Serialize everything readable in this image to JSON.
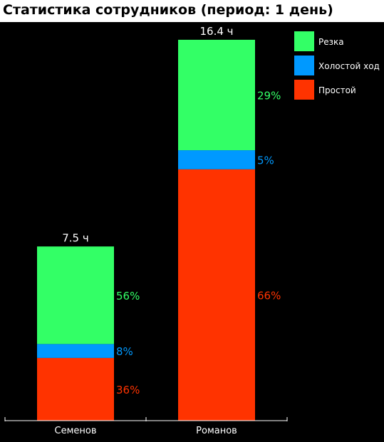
{
  "chart_data": {
    "type": "bar",
    "stacked": true,
    "title": "Статистика сотрудников (период: 1 день)",
    "categories": [
      "Семенов",
      "Романов"
    ],
    "totals": [
      7.5,
      16.4
    ],
    "total_labels": [
      "7.5 ч",
      "16.4 ч"
    ],
    "ylim": [
      0,
      17.5
    ],
    "grid": false,
    "legend_position": "top-right",
    "series": [
      {
        "name": "Простой",
        "color": "#ff3300",
        "percent": [
          36,
          66
        ],
        "values": [
          2.7,
          10.824
        ],
        "labels": [
          "36%",
          "66%"
        ]
      },
      {
        "name": "Холостой ход",
        "color": "#0099ff",
        "percent": [
          8,
          5
        ],
        "values": [
          0.6,
          0.82
        ],
        "labels": [
          "8%",
          "5%"
        ]
      },
      {
        "name": "Резка",
        "color": "#33ff66",
        "percent": [
          56,
          29
        ],
        "values": [
          4.2,
          4.756
        ],
        "labels": [
          "56%",
          "29%"
        ]
      }
    ],
    "legend_order": [
      "Резка",
      "Холостой ход",
      "Простой"
    ]
  }
}
